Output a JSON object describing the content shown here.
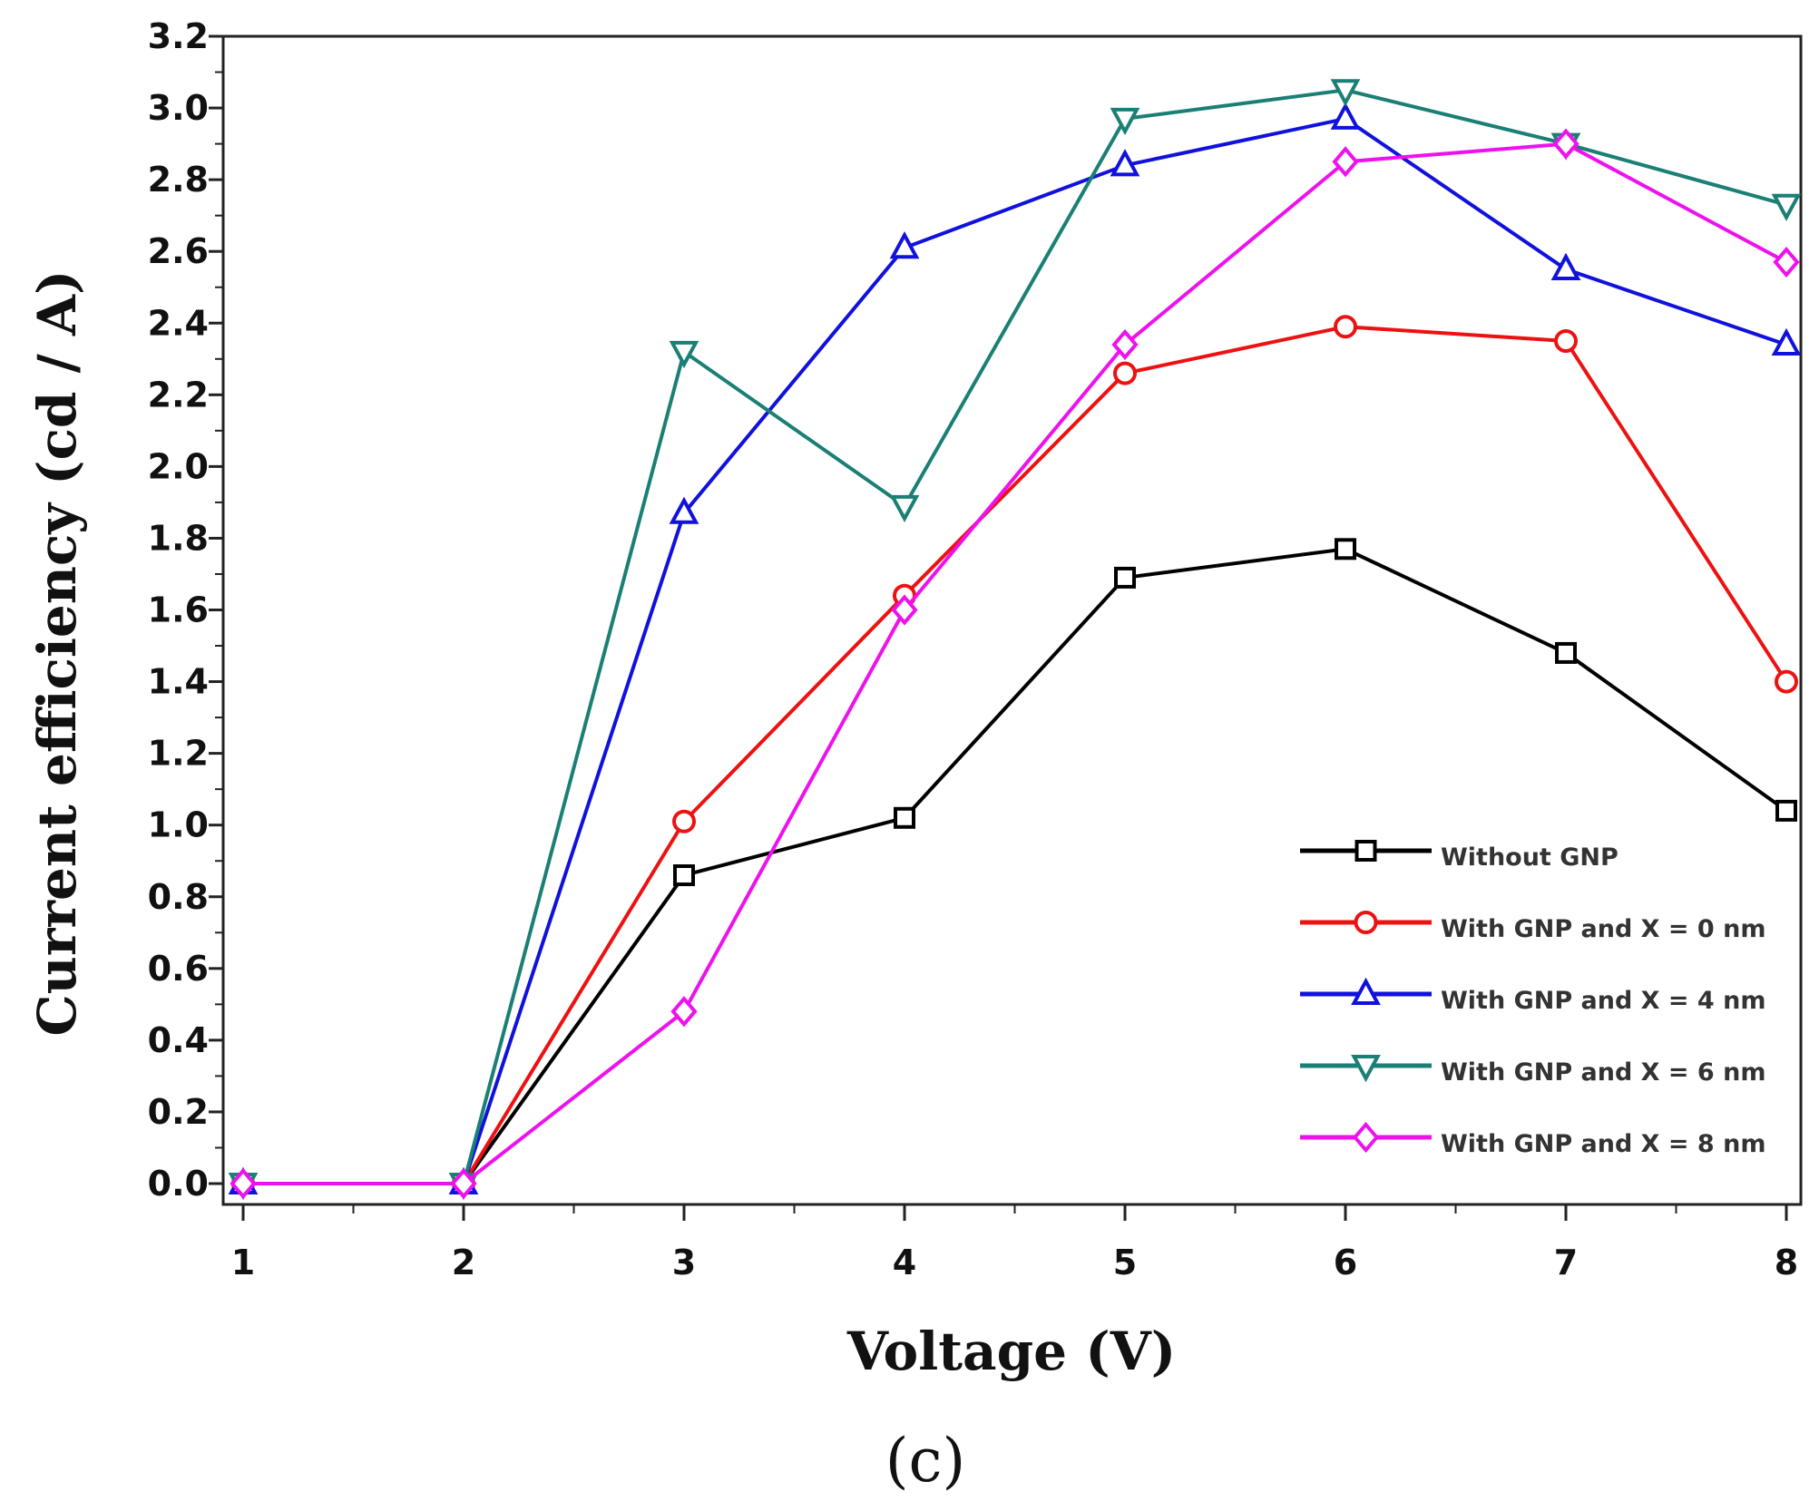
{
  "chart_data": {
    "type": "line",
    "title": "",
    "xlabel": "Voltage (V)",
    "ylabel": "Current efficiency (cd / A)",
    "xlim": [
      0.9,
      8.05
    ],
    "ylim": [
      -0.1,
      3.2
    ],
    "x_ticks": [
      1,
      2,
      3,
      4,
      5,
      6,
      7,
      8
    ],
    "x_tick_labels": [
      "1",
      "2",
      "3",
      "4",
      "5",
      "6",
      "7",
      "8"
    ],
    "y_ticks": [
      0.0,
      0.2,
      0.4,
      0.6,
      0.8,
      1.0,
      1.2,
      1.4,
      1.6,
      1.8,
      2.0,
      2.2,
      2.4,
      2.6,
      2.8,
      3.0,
      3.2
    ],
    "y_tick_labels": [
      "0.0",
      "0.2",
      "0.4",
      "0.6",
      "0.8",
      "1.0",
      "1.2",
      "1.4",
      "1.6",
      "1.8",
      "2.0",
      "2.2",
      "2.4",
      "2.6",
      "2.8",
      "3.0",
      "3.2"
    ],
    "x": [
      1,
      2,
      3,
      4,
      5,
      6,
      7,
      8
    ],
    "series": [
      {
        "name": "Without GNP",
        "color": "#000000",
        "marker": "square",
        "values": [
          0.0,
          0.0,
          0.86,
          1.02,
          1.69,
          1.77,
          1.48,
          1.04
        ]
      },
      {
        "name": "With GNP and X = 0 nm",
        "color": "#ee1111",
        "marker": "circle",
        "values": [
          0.0,
          0.0,
          1.01,
          1.64,
          2.26,
          2.39,
          2.35,
          1.4
        ]
      },
      {
        "name": "With GNP and X = 4 nm",
        "color": "#1111dd",
        "marker": "triangle-up",
        "values": [
          0.0,
          0.0,
          1.87,
          2.61,
          2.84,
          2.97,
          2.55,
          2.34
        ]
      },
      {
        "name": "With GNP and X = 6 nm",
        "color": "#1a7f74",
        "marker": "triangle-down",
        "values": [
          0.0,
          0.0,
          2.32,
          1.89,
          2.97,
          3.05,
          2.9,
          2.73
        ]
      },
      {
        "name": "With GNP and X = 8 nm",
        "color": "#ee11ee",
        "marker": "diamond",
        "values": [
          0.0,
          0.0,
          0.48,
          1.6,
          2.34,
          2.85,
          2.9,
          2.57
        ]
      }
    ],
    "legend_position": "bottom-right",
    "grid": false
  },
  "panel_label": "(c)"
}
